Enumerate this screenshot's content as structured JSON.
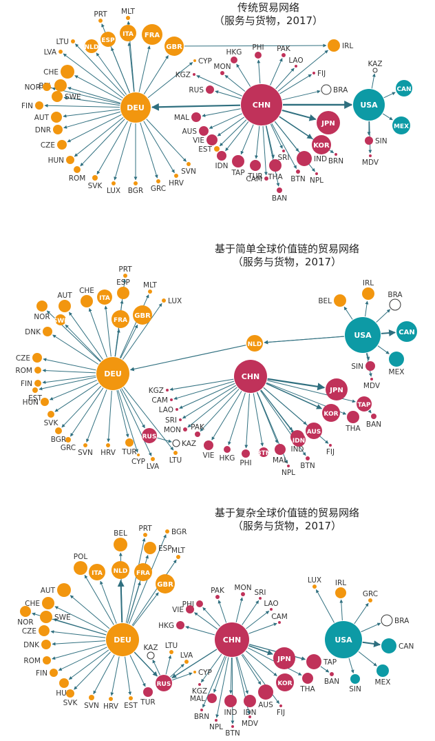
{
  "colors": {
    "europe": "#f2960f",
    "asia": "#c0325a",
    "america": "#0d9aa5",
    "other": "#ffffff",
    "edge": "#2f6f7f"
  },
  "panels": [
    {
      "title": "传统贸易网络",
      "subtitle": "（服务与货物，2017）",
      "hubs": [
        "DEU",
        "CHN",
        "USA"
      ],
      "nodes": [
        {
          "id": "DEU",
          "r": 22,
          "g": "europe"
        },
        {
          "id": "CHN",
          "r": 30,
          "g": "asia"
        },
        {
          "id": "USA",
          "r": 23,
          "g": "america"
        },
        {
          "id": "PRT",
          "r": 3,
          "g": "europe"
        },
        {
          "id": "MLT",
          "r": 3,
          "g": "europe"
        },
        {
          "id": "ITA",
          "r": 12,
          "g": "europe"
        },
        {
          "id": "FRA",
          "r": 15,
          "g": "europe"
        },
        {
          "id": "ESP",
          "r": 11,
          "g": "europe"
        },
        {
          "id": "NLD",
          "r": 10,
          "g": "europe"
        },
        {
          "id": "GBR",
          "r": 14,
          "g": "europe"
        },
        {
          "id": "LTU",
          "r": 3,
          "g": "europe"
        },
        {
          "id": "LVA",
          "r": 3,
          "g": "europe"
        },
        {
          "id": "CHE",
          "r": 10,
          "g": "europe"
        },
        {
          "id": "BEL",
          "r": 9,
          "g": "europe"
        },
        {
          "id": "NOR",
          "r": 6,
          "g": "europe"
        },
        {
          "id": "SWE",
          "r": 8,
          "g": "europe"
        },
        {
          "id": "FIN",
          "r": 6,
          "g": "europe"
        },
        {
          "id": "AUT",
          "r": 8,
          "g": "europe"
        },
        {
          "id": "DNR",
          "r": 7,
          "g": "europe"
        },
        {
          "id": "CZE",
          "r": 7,
          "g": "europe"
        },
        {
          "id": "HUN",
          "r": 6,
          "g": "europe"
        },
        {
          "id": "ROM",
          "r": 5,
          "g": "europe"
        },
        {
          "id": "SVK",
          "r": 4,
          "g": "europe"
        },
        {
          "id": "LUX",
          "r": 3,
          "g": "europe"
        },
        {
          "id": "BGR",
          "r": 3,
          "g": "europe"
        },
        {
          "id": "GRC",
          "r": 3,
          "g": "europe"
        },
        {
          "id": "HRV",
          "r": 3,
          "g": "europe"
        },
        {
          "id": "SVN",
          "r": 3,
          "g": "europe"
        },
        {
          "id": "CYP",
          "r": 2,
          "g": "europe"
        },
        {
          "id": "HKG",
          "r": 5,
          "g": "asia"
        },
        {
          "id": "PHI",
          "r": 5,
          "g": "asia"
        },
        {
          "id": "PAK",
          "r": 3,
          "g": "asia"
        },
        {
          "id": "LAO",
          "r": 2,
          "g": "asia"
        },
        {
          "id": "MON",
          "r": 3,
          "g": "asia"
        },
        {
          "id": "KGZ",
          "r": 2,
          "g": "asia"
        },
        {
          "id": "FIJ",
          "r": 2,
          "g": "asia"
        },
        {
          "id": "RUS",
          "r": 6,
          "g": "asia"
        },
        {
          "id": "MAL",
          "r": 7,
          "g": "asia"
        },
        {
          "id": "AUS",
          "r": 7,
          "g": "asia"
        },
        {
          "id": "VIE",
          "r": 8,
          "g": "asia"
        },
        {
          "id": "EST",
          "r": 4,
          "g": "europe"
        },
        {
          "id": "IDN",
          "r": 7,
          "g": "asia"
        },
        {
          "id": "TAP",
          "r": 9,
          "g": "asia"
        },
        {
          "id": "TUR",
          "r": 8,
          "g": "asia"
        },
        {
          "id": "THA",
          "r": 9,
          "g": "asia"
        },
        {
          "id": "CAM",
          "r": 3,
          "g": "asia"
        },
        {
          "id": "BAN",
          "r": 4,
          "g": "asia"
        },
        {
          "id": "SRI",
          "r": 2,
          "g": "asia"
        },
        {
          "id": "BTN",
          "r": 3,
          "g": "asia"
        },
        {
          "id": "IND",
          "r": 11,
          "g": "asia"
        },
        {
          "id": "NPL",
          "r": 2,
          "g": "asia"
        },
        {
          "id": "JPN",
          "r": 17,
          "g": "asia"
        },
        {
          "id": "KOR",
          "r": 14,
          "g": "asia"
        },
        {
          "id": "BRN",
          "r": 2,
          "g": "asia"
        },
        {
          "id": "IRL",
          "r": 9,
          "g": "europe"
        },
        {
          "id": "BRA",
          "r": 7,
          "g": "other"
        },
        {
          "id": "KAZ",
          "r": 3,
          "g": "other"
        },
        {
          "id": "CAN",
          "r": 12,
          "g": "america"
        },
        {
          "id": "MEX",
          "r": 13,
          "g": "america"
        },
        {
          "id": "SIN",
          "r": 6,
          "g": "asia"
        },
        {
          "id": "MDV",
          "r": 2,
          "g": "asia"
        }
      ]
    },
    {
      "title": "基于简单全球价值链的贸易网络",
      "subtitle": "（服务与货物，2017）",
      "hubs": [
        "DEU",
        "CHN",
        "USA"
      ],
      "nodes": [
        {
          "id": "DEU",
          "r": 24,
          "g": "europe"
        },
        {
          "id": "CHN",
          "r": 24,
          "g": "asia"
        },
        {
          "id": "USA",
          "r": 26,
          "g": "america"
        },
        {
          "id": "PRT",
          "r": 3,
          "g": "europe"
        },
        {
          "id": "ESP",
          "r": 9,
          "g": "europe"
        },
        {
          "id": "MLT",
          "r": 3,
          "g": "europe"
        },
        {
          "id": "CHE",
          "r": 9,
          "g": "europe"
        },
        {
          "id": "ITA",
          "r": 11,
          "g": "europe"
        },
        {
          "id": "AUT",
          "r": 9,
          "g": "europe"
        },
        {
          "id": "LUX",
          "r": 3,
          "g": "europe"
        },
        {
          "id": "GBR",
          "r": 14,
          "g": "europe"
        },
        {
          "id": "FRA",
          "r": 13,
          "g": "europe"
        },
        {
          "id": "NOR",
          "r": 8,
          "g": "europe"
        },
        {
          "id": "SWE",
          "r": 8,
          "g": "europe"
        },
        {
          "id": "DNK",
          "r": 7,
          "g": "europe"
        },
        {
          "id": "CZE",
          "r": 7,
          "g": "europe"
        },
        {
          "id": "ROM",
          "r": 5,
          "g": "europe"
        },
        {
          "id": "FIN",
          "r": 5,
          "g": "europe"
        },
        {
          "id": "EST",
          "r": 4,
          "g": "europe"
        },
        {
          "id": "HUN",
          "r": 6,
          "g": "europe"
        },
        {
          "id": "SVK",
          "r": 5,
          "g": "europe"
        },
        {
          "id": "BGR",
          "r": 5,
          "g": "europe"
        },
        {
          "id": "GRC",
          "r": 4,
          "g": "europe"
        },
        {
          "id": "SVN",
          "r": 3,
          "g": "europe"
        },
        {
          "id": "HRV",
          "r": 3,
          "g": "europe"
        },
        {
          "id": "TUR",
          "r": 6,
          "g": "europe"
        },
        {
          "id": "CYP",
          "r": 2,
          "g": "europe"
        },
        {
          "id": "LVA",
          "r": 3,
          "g": "europe"
        },
        {
          "id": "LTU",
          "r": 3,
          "g": "europe"
        },
        {
          "id": "NLD",
          "r": 12,
          "g": "europe"
        },
        {
          "id": "RUS",
          "r": 11,
          "g": "asia"
        },
        {
          "id": "KAZ",
          "r": 5,
          "g": "other"
        },
        {
          "id": "KGZ",
          "r": 2,
          "g": "asia"
        },
        {
          "id": "CAM",
          "r": 2,
          "g": "asia"
        },
        {
          "id": "LAO",
          "r": 2,
          "g": "asia"
        },
        {
          "id": "SRI",
          "r": 2,
          "g": "asia"
        },
        {
          "id": "MON",
          "r": 3,
          "g": "asia"
        },
        {
          "id": "PAK",
          "r": 4,
          "g": "asia"
        },
        {
          "id": "VIE",
          "r": 7,
          "g": "asia"
        },
        {
          "id": "HKG",
          "r": 5,
          "g": "asia"
        },
        {
          "id": "PHI",
          "r": 6,
          "g": "asia"
        },
        {
          "id": "BTN",
          "r": 7,
          "g": "asia"
        },
        {
          "id": "MAL",
          "r": 8,
          "g": "asia"
        },
        {
          "id": "NPL",
          "r": 2,
          "g": "asia"
        },
        {
          "id": "IND",
          "r": 10,
          "g": "asia"
        },
        {
          "id": "IDN",
          "r": 10,
          "g": "asia"
        },
        {
          "id": "BTN2",
          "label": "BTN",
          "r": 3,
          "g": "asia"
        },
        {
          "id": "AUS",
          "r": 12,
          "g": "asia"
        },
        {
          "id": "FIJ",
          "r": 2,
          "g": "asia"
        },
        {
          "id": "KOR",
          "r": 13,
          "g": "asia"
        },
        {
          "id": "JPN",
          "r": 16,
          "g": "asia"
        },
        {
          "id": "THA",
          "r": 9,
          "g": "asia"
        },
        {
          "id": "TAP",
          "r": 11,
          "g": "asia"
        },
        {
          "id": "BAN",
          "r": 4,
          "g": "asia"
        },
        {
          "id": "SIN",
          "r": 7,
          "g": "asia"
        },
        {
          "id": "MDV",
          "r": 2,
          "g": "asia"
        },
        {
          "id": "BEL",
          "r": 9,
          "g": "europe"
        },
        {
          "id": "IRL",
          "r": 9,
          "g": "europe"
        },
        {
          "id": "BRA",
          "r": 8,
          "g": "other"
        },
        {
          "id": "CAN",
          "r": 15,
          "g": "america"
        },
        {
          "id": "MEX",
          "r": 11,
          "g": "america"
        }
      ]
    },
    {
      "title": "基于复杂全球价值链的贸易网络",
      "subtitle": "（服务与货物，2017）",
      "hubs": [
        "DEU",
        "CHN",
        "USA"
      ],
      "nodes": [
        {
          "id": "DEU",
          "r": 24,
          "g": "europe"
        },
        {
          "id": "CHN",
          "r": 25,
          "g": "asia"
        },
        {
          "id": "USA",
          "r": 27,
          "g": "america"
        },
        {
          "id": "BEL",
          "r": 10,
          "g": "europe"
        },
        {
          "id": "PRT",
          "r": 3,
          "g": "europe"
        },
        {
          "id": "BGR",
          "r": 3,
          "g": "europe"
        },
        {
          "id": "ESP",
          "r": 9,
          "g": "europe"
        },
        {
          "id": "MLT",
          "r": 3,
          "g": "europe"
        },
        {
          "id": "POL",
          "r": 10,
          "g": "europe"
        },
        {
          "id": "ITA",
          "r": 12,
          "g": "europe"
        },
        {
          "id": "NLD",
          "r": 13,
          "g": "europe"
        },
        {
          "id": "FRA",
          "r": 13,
          "g": "europe"
        },
        {
          "id": "GBR",
          "r": 14,
          "g": "europe"
        },
        {
          "id": "AUT",
          "r": 10,
          "g": "europe"
        },
        {
          "id": "CHE",
          "r": 9,
          "g": "europe"
        },
        {
          "id": "NOR",
          "r": 8,
          "g": "europe"
        },
        {
          "id": "SWE",
          "r": 9,
          "g": "europe"
        },
        {
          "id": "CZE",
          "r": 8,
          "g": "europe"
        },
        {
          "id": "DNK",
          "r": 7,
          "g": "europe"
        },
        {
          "id": "ROM",
          "r": 6,
          "g": "europe"
        },
        {
          "id": "FIN",
          "r": 6,
          "g": "europe"
        },
        {
          "id": "HUN",
          "r": 7,
          "g": "europe"
        },
        {
          "id": "SVK",
          "r": 6,
          "g": "europe"
        },
        {
          "id": "SVN",
          "r": 4,
          "g": "europe"
        },
        {
          "id": "HRV",
          "r": 3,
          "g": "europe"
        },
        {
          "id": "EST",
          "r": 3,
          "g": "europe"
        },
        {
          "id": "TUR",
          "r": 7,
          "g": "asia"
        },
        {
          "id": "KAZ",
          "r": 5,
          "g": "other"
        },
        {
          "id": "LTU",
          "r": 3,
          "g": "europe"
        },
        {
          "id": "LVA",
          "r": 3,
          "g": "europe"
        },
        {
          "id": "CYP",
          "r": 2,
          "g": "europe"
        },
        {
          "id": "RUS",
          "r": 12,
          "g": "asia"
        },
        {
          "id": "PHI",
          "r": 5,
          "g": "asia"
        },
        {
          "id": "PAK",
          "r": 3,
          "g": "asia"
        },
        {
          "id": "MON",
          "r": 3,
          "g": "asia"
        },
        {
          "id": "SRI",
          "r": 2,
          "g": "asia"
        },
        {
          "id": "VIE",
          "r": 6,
          "g": "asia"
        },
        {
          "id": "LAO",
          "r": 2,
          "g": "asia"
        },
        {
          "id": "HKG",
          "r": 6,
          "g": "asia"
        },
        {
          "id": "CAM",
          "r": 2,
          "g": "asia"
        },
        {
          "id": "KGZ",
          "r": 2,
          "g": "asia"
        },
        {
          "id": "MAL",
          "r": 7,
          "g": "asia"
        },
        {
          "id": "BRN",
          "r": 2,
          "g": "asia"
        },
        {
          "id": "NPL",
          "r": 2,
          "g": "asia"
        },
        {
          "id": "IND",
          "r": 9,
          "g": "asia"
        },
        {
          "id": "BTN",
          "r": 2,
          "g": "asia"
        },
        {
          "id": "MDV",
          "r": 2,
          "g": "asia"
        },
        {
          "id": "IDN",
          "r": 9,
          "g": "asia"
        },
        {
          "id": "AUS",
          "r": 11,
          "g": "asia"
        },
        {
          "id": "FIJ",
          "r": 2,
          "g": "asia"
        },
        {
          "id": "JPN",
          "r": 16,
          "g": "asia"
        },
        {
          "id": "KOR",
          "r": 13,
          "g": "asia"
        },
        {
          "id": "TAP",
          "r": 11,
          "g": "asia"
        },
        {
          "id": "THA",
          "r": 8,
          "g": "asia"
        },
        {
          "id": "BAN",
          "r": 3,
          "g": "asia"
        },
        {
          "id": "LUX",
          "r": 3,
          "g": "europe"
        },
        {
          "id": "IRL",
          "r": 8,
          "g": "europe"
        },
        {
          "id": "GRC",
          "r": 3,
          "g": "europe"
        },
        {
          "id": "BRA",
          "r": 8,
          "g": "other"
        },
        {
          "id": "CAN",
          "r": 11,
          "g": "america"
        },
        {
          "id": "MEX",
          "r": 9,
          "g": "america"
        },
        {
          "id": "SIN",
          "r": 7,
          "g": "america"
        }
      ]
    }
  ]
}
